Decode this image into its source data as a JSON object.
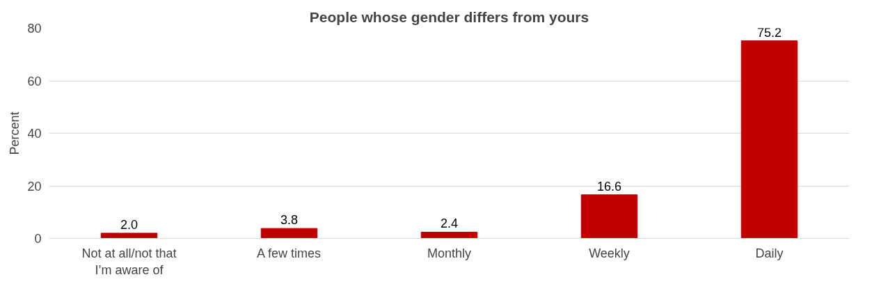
{
  "chart_data": {
    "type": "bar",
    "title": "People whose gender differs from yours",
    "ylabel": "Percent",
    "categories": [
      "Not at all/not that I’m aware of",
      "A few times",
      "Monthly",
      "Weekly",
      "Daily"
    ],
    "values": [
      2.0,
      3.8,
      2.4,
      16.6,
      75.2
    ],
    "value_labels": [
      "2.0",
      "3.8",
      "2.4",
      "16.6",
      "75.2"
    ],
    "color": "#c00000",
    "ylim": [
      0,
      80
    ],
    "yticks": [
      0,
      20,
      40,
      60,
      80
    ],
    "grid": "y"
  }
}
